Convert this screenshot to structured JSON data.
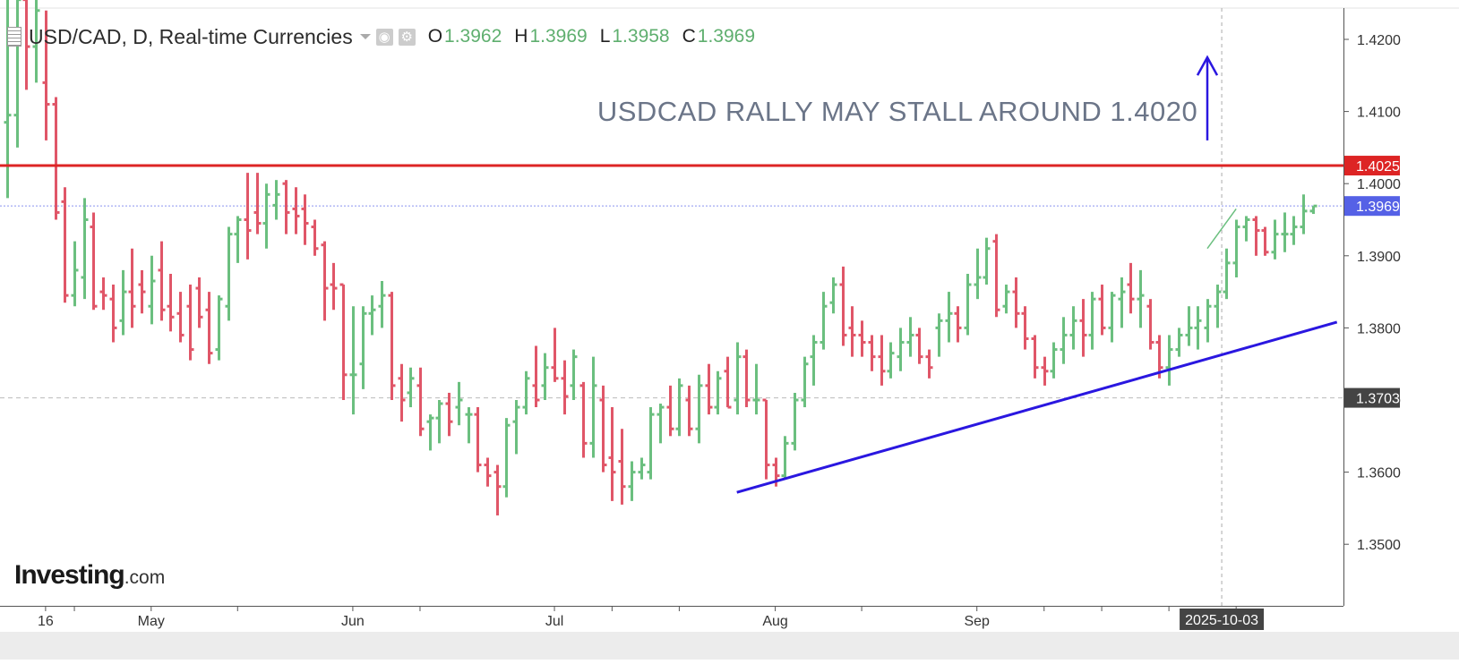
{
  "header": {
    "title": "USD/CAD, D, Real-time Currencies",
    "ohlc": [
      {
        "label": "O",
        "value": "1.3962"
      },
      {
        "label": "H",
        "value": "1.3969"
      },
      {
        "label": "L",
        "value": "1.3958"
      },
      {
        "label": "C",
        "value": "1.3969"
      }
    ]
  },
  "logo": {
    "brand": "Investing",
    "domain": ".com"
  },
  "colors": {
    "up": "#6bbf7f",
    "down": "#e05668",
    "resistance": "#dd2424",
    "trendline": "#2a17e0",
    "annotation": "#6b7588",
    "price_label": "#5561e6",
    "support_label": "#444444",
    "date_label": "#444444"
  },
  "icons": [
    "menu-icon",
    "caret-down-icon",
    "eye-icon",
    "gear-icon",
    "up-arrow-icon"
  ],
  "chart_data": {
    "type": "ohlc",
    "symbol": "USD/CAD",
    "interval": "D",
    "ylim": [
      1.342,
      1.4245
    ],
    "y_ticks": [
      1.42,
      1.41,
      1.4,
      1.39,
      1.38,
      1.37,
      1.36,
      1.35
    ],
    "y_tick_labels": [
      "1.4200",
      "1.4100",
      "1.4000",
      "1.3900",
      "1.3800",
      "1.3700",
      "1.3600",
      "1.3500"
    ],
    "x_labels": [
      {
        "bar": 4,
        "label": "16"
      },
      {
        "bar": 15,
        "label": "May"
      },
      {
        "bar": 36,
        "label": "Jun"
      },
      {
        "bar": 57,
        "label": "Jul"
      },
      {
        "bar": 80,
        "label": "Aug"
      },
      {
        "bar": 101,
        "label": "Sep"
      }
    ],
    "x_minor_ticks": [
      7,
      24,
      43,
      63,
      70,
      89,
      108,
      114,
      121,
      128
    ],
    "bars": [
      [
        1.4085,
        1.4285,
        1.398,
        1.4095
      ],
      [
        1.4095,
        1.428,
        1.405,
        1.4255
      ],
      [
        1.4255,
        1.429,
        1.413,
        1.419
      ],
      [
        1.419,
        1.428,
        1.414,
        1.424
      ],
      [
        1.414,
        1.424,
        1.406,
        1.411
      ],
      [
        1.411,
        1.412,
        1.395,
        1.396
      ],
      [
        1.3975,
        1.3995,
        1.3835,
        1.3845
      ],
      [
        1.3845,
        1.392,
        1.383,
        1.388
      ],
      [
        1.387,
        1.398,
        1.384,
        1.395
      ],
      [
        1.394,
        1.396,
        1.3825,
        1.383
      ],
      [
        1.385,
        1.387,
        1.3825,
        1.3845
      ],
      [
        1.384,
        1.386,
        1.378,
        1.38
      ],
      [
        1.381,
        1.388,
        1.379,
        1.385
      ],
      [
        1.385,
        1.391,
        1.38,
        1.383
      ],
      [
        1.386,
        1.388,
        1.382,
        1.385
      ],
      [
        1.383,
        1.39,
        1.3805,
        1.3865
      ],
      [
        1.388,
        1.392,
        1.381,
        1.3825
      ],
      [
        1.383,
        1.3875,
        1.3795,
        1.3815
      ],
      [
        1.382,
        1.385,
        1.378,
        1.379
      ],
      [
        1.383,
        1.386,
        1.3755,
        1.377
      ],
      [
        1.3855,
        1.387,
        1.38,
        1.3815
      ],
      [
        1.3825,
        1.385,
        1.375,
        1.3765
      ],
      [
        1.377,
        1.3845,
        1.3755,
        1.384
      ],
      [
        1.383,
        1.394,
        1.381,
        1.393
      ],
      [
        1.393,
        1.3955,
        1.389,
        1.395
      ],
      [
        1.395,
        1.4015,
        1.3895,
        1.3935
      ],
      [
        1.396,
        1.4015,
        1.393,
        1.3945
      ],
      [
        1.3945,
        1.4,
        1.391,
        1.3985
      ],
      [
        1.397,
        1.4005,
        1.395,
        1.3985
      ],
      [
        1.4,
        1.4005,
        1.393,
        1.396
      ],
      [
        1.3965,
        1.3995,
        1.393,
        1.3955
      ],
      [
        1.3965,
        1.3985,
        1.3915,
        1.3945
      ],
      [
        1.394,
        1.395,
        1.39,
        1.391
      ],
      [
        1.3915,
        1.392,
        1.381,
        1.3855
      ],
      [
        1.386,
        1.389,
        1.3825,
        1.3855
      ],
      [
        1.386,
        1.386,
        1.37,
        1.3735
      ],
      [
        1.3735,
        1.383,
        1.368,
        1.3735
      ],
      [
        1.375,
        1.383,
        1.3715,
        1.382
      ],
      [
        1.382,
        1.3845,
        1.379,
        1.3825
      ],
      [
        1.383,
        1.3865,
        1.38,
        1.3845
      ],
      [
        1.3845,
        1.385,
        1.37,
        1.372
      ],
      [
        1.373,
        1.375,
        1.367,
        1.37
      ],
      [
        1.371,
        1.3745,
        1.369,
        1.373
      ],
      [
        1.372,
        1.3745,
        1.365,
        1.366
      ],
      [
        1.367,
        1.368,
        1.363,
        1.3675
      ],
      [
        1.3675,
        1.37,
        1.364,
        1.3695
      ],
      [
        1.3695,
        1.371,
        1.365,
        1.367
      ],
      [
        1.369,
        1.3725,
        1.3665,
        1.37
      ],
      [
        1.368,
        1.369,
        1.364,
        1.368
      ],
      [
        1.368,
        1.369,
        1.36,
        1.361
      ],
      [
        1.361,
        1.362,
        1.358,
        1.3595
      ],
      [
        1.36,
        1.361,
        1.354,
        1.358
      ],
      [
        1.358,
        1.3675,
        1.3565,
        1.3665
      ],
      [
        1.367,
        1.37,
        1.3625,
        1.369
      ],
      [
        1.369,
        1.374,
        1.368,
        1.373
      ],
      [
        1.372,
        1.3775,
        1.369,
        1.37
      ],
      [
        1.372,
        1.3765,
        1.37,
        1.3745
      ],
      [
        1.3745,
        1.38,
        1.3725,
        1.373
      ],
      [
        1.373,
        1.3755,
        1.368,
        1.3705
      ],
      [
        1.372,
        1.377,
        1.37,
        1.376
      ],
      [
        1.372,
        1.3725,
        1.362,
        1.364
      ],
      [
        1.364,
        1.376,
        1.362,
        1.372
      ],
      [
        1.37,
        1.372,
        1.36,
        1.361
      ],
      [
        1.362,
        1.369,
        1.356,
        1.36
      ],
      [
        1.3615,
        1.366,
        1.3555,
        1.358
      ],
      [
        1.358,
        1.3615,
        1.356,
        1.36
      ],
      [
        1.36,
        1.362,
        1.359,
        1.361
      ],
      [
        1.36,
        1.369,
        1.359,
        1.368
      ],
      [
        1.368,
        1.3695,
        1.364,
        1.369
      ],
      [
        1.369,
        1.372,
        1.365,
        1.366
      ],
      [
        1.366,
        1.373,
        1.365,
        1.372
      ],
      [
        1.37,
        1.372,
        1.365,
        1.366
      ],
      [
        1.366,
        1.3735,
        1.364,
        1.372
      ],
      [
        1.372,
        1.375,
        1.368,
        1.369
      ],
      [
        1.369,
        1.374,
        1.368,
        1.373
      ],
      [
        1.374,
        1.376,
        1.369,
        1.369
      ],
      [
        1.37,
        1.378,
        1.368,
        1.376
      ],
      [
        1.376,
        1.377,
        1.369,
        1.37
      ],
      [
        1.37,
        1.375,
        1.368,
        1.37
      ],
      [
        1.37,
        1.37,
        1.359,
        1.361
      ],
      [
        1.361,
        1.362,
        1.358,
        1.3595
      ],
      [
        1.3595,
        1.365,
        1.359,
        1.364
      ],
      [
        1.364,
        1.371,
        1.363,
        1.37
      ],
      [
        1.37,
        1.376,
        1.369,
        1.375
      ],
      [
        1.376,
        1.379,
        1.372,
        1.378
      ],
      [
        1.378,
        1.385,
        1.377,
        1.383
      ],
      [
        1.3835,
        1.387,
        1.382,
        1.386
      ],
      [
        1.386,
        1.3885,
        1.3775,
        1.379
      ],
      [
        1.38,
        1.383,
        1.376,
        1.379
      ],
      [
        1.379,
        1.381,
        1.376,
        1.378
      ],
      [
        1.378,
        1.379,
        1.374,
        1.376
      ],
      [
        1.376,
        1.379,
        1.372,
        1.374
      ],
      [
        1.374,
        1.378,
        1.373,
        1.3765
      ],
      [
        1.376,
        1.38,
        1.374,
        1.378
      ],
      [
        1.378,
        1.3815,
        1.376,
        1.379
      ],
      [
        1.379,
        1.38,
        1.375,
        1.376
      ],
      [
        1.376,
        1.377,
        1.373,
        1.3745
      ],
      [
        1.38,
        1.382,
        1.376,
        1.381
      ],
      [
        1.381,
        1.385,
        1.378,
        1.382
      ],
      [
        1.382,
        1.383,
        1.378,
        1.38
      ],
      [
        1.38,
        1.3875,
        1.379,
        1.386
      ],
      [
        1.386,
        1.391,
        1.384,
        1.387
      ],
      [
        1.387,
        1.3925,
        1.386,
        1.391
      ],
      [
        1.392,
        1.393,
        1.3815,
        1.3825
      ],
      [
        1.383,
        1.386,
        1.382,
        1.385
      ],
      [
        1.385,
        1.387,
        1.38,
        1.382
      ],
      [
        1.382,
        1.383,
        1.377,
        1.3785
      ],
      [
        1.3785,
        1.379,
        1.373,
        1.3745
      ],
      [
        1.3745,
        1.376,
        1.372,
        1.374
      ],
      [
        1.374,
        1.378,
        1.373,
        1.377
      ],
      [
        1.377,
        1.3815,
        1.375,
        1.379
      ],
      [
        1.379,
        1.383,
        1.377,
        1.381
      ],
      [
        1.381,
        1.384,
        1.376,
        1.379
      ],
      [
        1.379,
        1.385,
        1.377,
        1.384
      ],
      [
        1.384,
        1.386,
        1.379,
        1.38
      ],
      [
        1.38,
        1.385,
        1.378,
        1.3845
      ],
      [
        1.384,
        1.387,
        1.38,
        1.385
      ],
      [
        1.386,
        1.389,
        1.382,
        1.384
      ],
      [
        1.384,
        1.388,
        1.38,
        1.3845
      ],
      [
        1.383,
        1.384,
        1.377,
        1.378
      ],
      [
        1.378,
        1.379,
        1.373,
        1.3745
      ],
      [
        1.3745,
        1.379,
        1.372,
        1.377
      ],
      [
        1.377,
        1.38,
        1.376,
        1.379
      ],
      [
        1.379,
        1.383,
        1.3775,
        1.38
      ],
      [
        1.38,
        1.383,
        1.377,
        1.381
      ],
      [
        1.38,
        1.384,
        1.378,
        1.383
      ],
      [
        1.383,
        1.386,
        1.38,
        1.385
      ],
      [
        1.385,
        1.391,
        1.384,
        1.389
      ],
      [
        1.389,
        1.395,
        1.387,
        1.394
      ],
      [
        1.394,
        1.3955,
        1.392,
        1.395
      ],
      [
        1.395,
        1.3955,
        1.39,
        1.3935
      ],
      [
        1.3935,
        1.394,
        1.39,
        1.3905
      ],
      [
        1.3905,
        1.395,
        1.3895,
        1.393
      ],
      [
        1.393,
        1.396,
        1.3905,
        1.393
      ],
      [
        1.393,
        1.3955,
        1.3915,
        1.394
      ],
      [
        1.394,
        1.3985,
        1.393,
        1.3962
      ],
      [
        1.3962,
        1.3969,
        1.3958,
        1.3969
      ]
    ],
    "resistance": {
      "price": 1.4025,
      "label": "1.4025"
    },
    "support_level": {
      "price": 1.3703,
      "label": "1.3703"
    },
    "last_price": {
      "price": 1.3969,
      "label": "1.3969"
    },
    "trendline": {
      "from": {
        "bar": 76,
        "price": 1.3572
      },
      "to": {
        "bar": 138.5,
        "price": 1.3808
      }
    },
    "minor_trendline": {
      "from": {
        "bar": 125,
        "price": 1.391
      },
      "to": {
        "bar": 128,
        "price": 1.3965
      }
    },
    "annotation": {
      "text": "USDCAD RALLY MAY STALL AROUND 1.4020",
      "anchor_bar": 124,
      "price": 1.4102
    },
    "arrow": {
      "bar": 125,
      "from_price": 1.406,
      "to_price": 1.4175
    },
    "current_bar": 126.5,
    "current_date_label": "2025-10-03"
  }
}
